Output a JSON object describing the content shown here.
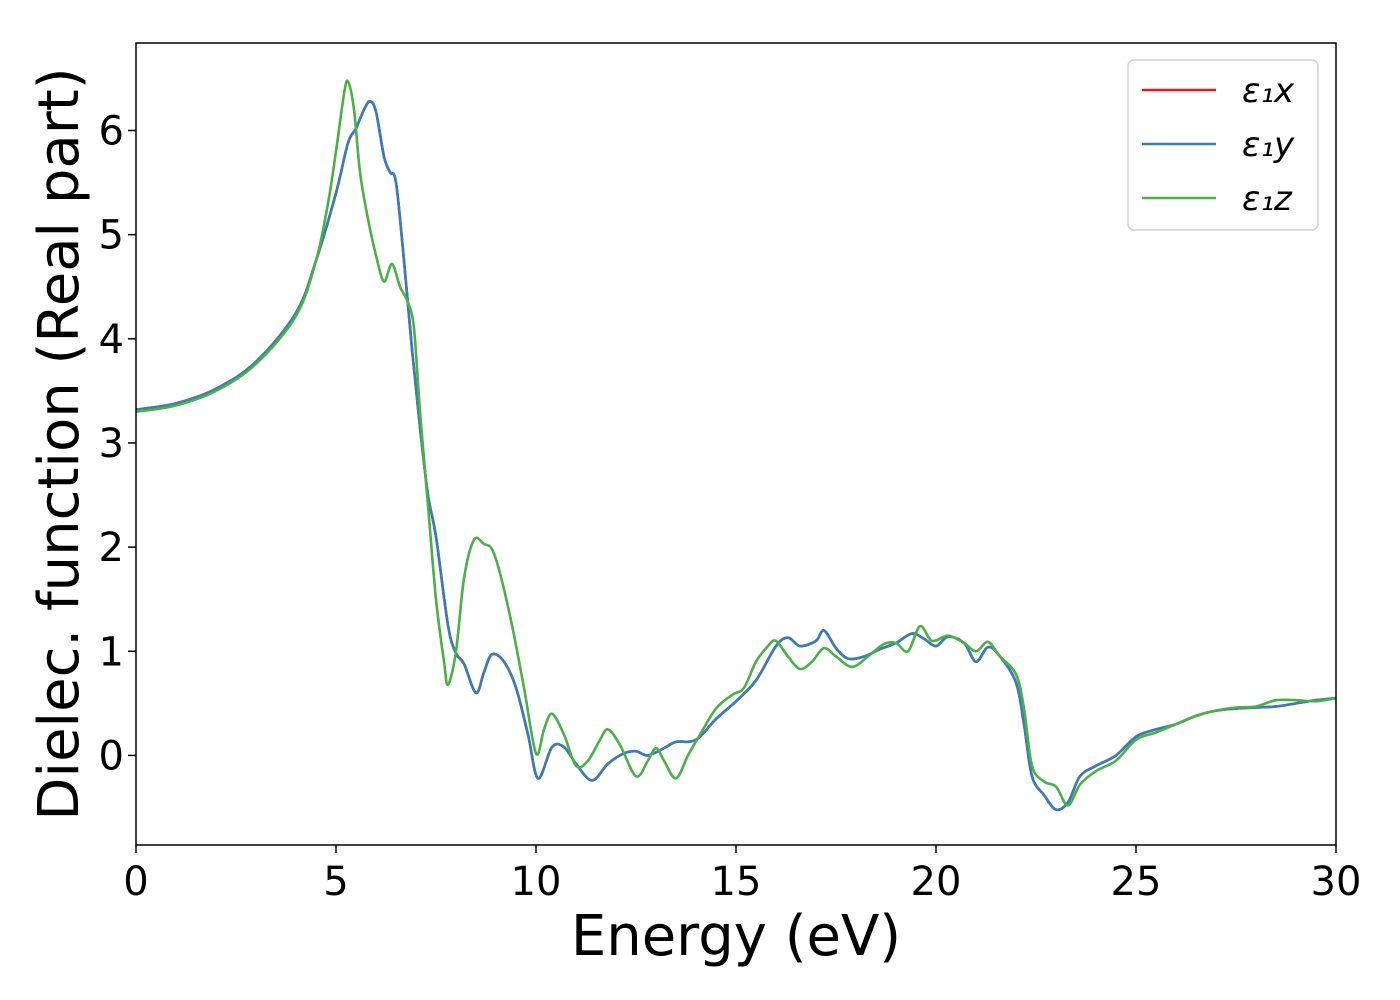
{
  "chart_data": {
    "type": "line",
    "xlabel": "Energy (eV)",
    "ylabel": "Dielec. function (Real part)",
    "xlim": [
      0,
      30
    ],
    "ylim": [
      -0.86,
      6.84
    ],
    "xticks": [
      0,
      5,
      10,
      15,
      20,
      25,
      30
    ],
    "yticks": [
      0,
      1,
      2,
      3,
      4,
      5,
      6
    ],
    "grid": false,
    "legend_position": "top-right",
    "series": [
      {
        "name": "ε₁x",
        "color": "#e41a1c",
        "points": [
          [
            0,
            3.32
          ],
          [
            1,
            3.38
          ],
          [
            2,
            3.52
          ],
          [
            3,
            3.78
          ],
          [
            4,
            4.25
          ],
          [
            4.5,
            4.75
          ],
          [
            5,
            5.4
          ],
          [
            5.3,
            5.88
          ],
          [
            5.5,
            6.02
          ],
          [
            5.7,
            6.2
          ],
          [
            5.85,
            6.28
          ],
          [
            6.0,
            6.18
          ],
          [
            6.2,
            5.75
          ],
          [
            6.35,
            5.6
          ],
          [
            6.5,
            5.5
          ],
          [
            6.7,
            4.75
          ],
          [
            6.9,
            3.9
          ],
          [
            7.1,
            3.15
          ],
          [
            7.3,
            2.5
          ],
          [
            7.5,
            2.1
          ],
          [
            7.8,
            1.25
          ],
          [
            8.0,
            0.98
          ],
          [
            8.2,
            0.88
          ],
          [
            8.5,
            0.6
          ],
          [
            8.7,
            0.8
          ],
          [
            8.9,
            0.97
          ],
          [
            9.2,
            0.9
          ],
          [
            9.5,
            0.65
          ],
          [
            9.8,
            0.2
          ],
          [
            10.05,
            -0.22
          ],
          [
            10.4,
            0.08
          ],
          [
            10.7,
            0.08
          ],
          [
            11.0,
            -0.08
          ],
          [
            11.4,
            -0.24
          ],
          [
            11.8,
            -0.08
          ],
          [
            12.2,
            0.02
          ],
          [
            12.5,
            0.04
          ],
          [
            12.8,
            0.0
          ],
          [
            13.2,
            0.07
          ],
          [
            13.5,
            0.13
          ],
          [
            14.0,
            0.15
          ],
          [
            14.5,
            0.35
          ],
          [
            15.0,
            0.52
          ],
          [
            15.5,
            0.72
          ],
          [
            16.0,
            1.05
          ],
          [
            16.3,
            1.13
          ],
          [
            16.6,
            1.05
          ],
          [
            17.0,
            1.1
          ],
          [
            17.2,
            1.2
          ],
          [
            17.5,
            1.03
          ],
          [
            17.8,
            0.93
          ],
          [
            18.2,
            0.95
          ],
          [
            18.6,
            1.02
          ],
          [
            19.0,
            1.08
          ],
          [
            19.4,
            1.17
          ],
          [
            19.7,
            1.12
          ],
          [
            20.0,
            1.05
          ],
          [
            20.3,
            1.14
          ],
          [
            20.7,
            1.08
          ],
          [
            21.0,
            0.9
          ],
          [
            21.3,
            1.04
          ],
          [
            21.6,
            0.95
          ],
          [
            22.0,
            0.7
          ],
          [
            22.2,
            0.3
          ],
          [
            22.4,
            -0.2
          ],
          [
            22.7,
            -0.38
          ],
          [
            23.0,
            -0.52
          ],
          [
            23.3,
            -0.45
          ],
          [
            23.6,
            -0.2
          ],
          [
            24.0,
            -0.1
          ],
          [
            24.5,
            0.0
          ],
          [
            25.0,
            0.18
          ],
          [
            25.5,
            0.25
          ],
          [
            26.0,
            0.3
          ],
          [
            26.5,
            0.38
          ],
          [
            27.0,
            0.43
          ],
          [
            27.5,
            0.45
          ],
          [
            28.0,
            0.46
          ],
          [
            28.5,
            0.47
          ],
          [
            29.0,
            0.5
          ],
          [
            29.5,
            0.53
          ],
          [
            30.0,
            0.55
          ]
        ]
      },
      {
        "name": "ε₁y",
        "color": "#377eb8",
        "points": [
          [
            0,
            3.32
          ],
          [
            1,
            3.38
          ],
          [
            2,
            3.52
          ],
          [
            3,
            3.78
          ],
          [
            4,
            4.25
          ],
          [
            4.5,
            4.75
          ],
          [
            5,
            5.4
          ],
          [
            5.3,
            5.88
          ],
          [
            5.5,
            6.02
          ],
          [
            5.7,
            6.2
          ],
          [
            5.85,
            6.28
          ],
          [
            6.0,
            6.18
          ],
          [
            6.2,
            5.75
          ],
          [
            6.35,
            5.6
          ],
          [
            6.5,
            5.5
          ],
          [
            6.7,
            4.75
          ],
          [
            6.9,
            3.9
          ],
          [
            7.1,
            3.15
          ],
          [
            7.3,
            2.5
          ],
          [
            7.5,
            2.1
          ],
          [
            7.8,
            1.25
          ],
          [
            8.0,
            0.98
          ],
          [
            8.2,
            0.88
          ],
          [
            8.5,
            0.6
          ],
          [
            8.7,
            0.8
          ],
          [
            8.9,
            0.97
          ],
          [
            9.2,
            0.9
          ],
          [
            9.5,
            0.65
          ],
          [
            9.8,
            0.2
          ],
          [
            10.05,
            -0.22
          ],
          [
            10.4,
            0.08
          ],
          [
            10.7,
            0.08
          ],
          [
            11.0,
            -0.08
          ],
          [
            11.4,
            -0.24
          ],
          [
            11.8,
            -0.08
          ],
          [
            12.2,
            0.02
          ],
          [
            12.5,
            0.04
          ],
          [
            12.8,
            0.0
          ],
          [
            13.2,
            0.07
          ],
          [
            13.5,
            0.13
          ],
          [
            14.0,
            0.15
          ],
          [
            14.5,
            0.35
          ],
          [
            15.0,
            0.52
          ],
          [
            15.5,
            0.72
          ],
          [
            16.0,
            1.05
          ],
          [
            16.3,
            1.13
          ],
          [
            16.6,
            1.05
          ],
          [
            17.0,
            1.1
          ],
          [
            17.2,
            1.2
          ],
          [
            17.5,
            1.03
          ],
          [
            17.8,
            0.93
          ],
          [
            18.2,
            0.95
          ],
          [
            18.6,
            1.02
          ],
          [
            19.0,
            1.08
          ],
          [
            19.4,
            1.17
          ],
          [
            19.7,
            1.12
          ],
          [
            20.0,
            1.05
          ],
          [
            20.3,
            1.14
          ],
          [
            20.7,
            1.08
          ],
          [
            21.0,
            0.9
          ],
          [
            21.3,
            1.04
          ],
          [
            21.6,
            0.95
          ],
          [
            22.0,
            0.7
          ],
          [
            22.2,
            0.3
          ],
          [
            22.4,
            -0.2
          ],
          [
            22.7,
            -0.38
          ],
          [
            23.0,
            -0.52
          ],
          [
            23.3,
            -0.45
          ],
          [
            23.6,
            -0.2
          ],
          [
            24.0,
            -0.1
          ],
          [
            24.5,
            0.0
          ],
          [
            25.0,
            0.18
          ],
          [
            25.5,
            0.25
          ],
          [
            26.0,
            0.3
          ],
          [
            26.5,
            0.38
          ],
          [
            27.0,
            0.43
          ],
          [
            27.5,
            0.45
          ],
          [
            28.0,
            0.46
          ],
          [
            28.5,
            0.47
          ],
          [
            29.0,
            0.5
          ],
          [
            29.5,
            0.53
          ],
          [
            30.0,
            0.55
          ]
        ]
      },
      {
        "name": "ε₁z",
        "color": "#4daf4a",
        "points": [
          [
            0,
            3.3
          ],
          [
            1,
            3.36
          ],
          [
            2,
            3.5
          ],
          [
            3,
            3.76
          ],
          [
            4,
            4.22
          ],
          [
            4.5,
            4.75
          ],
          [
            4.8,
            5.3
          ],
          [
            5.0,
            5.8
          ],
          [
            5.2,
            6.35
          ],
          [
            5.3,
            6.47
          ],
          [
            5.45,
            6.2
          ],
          [
            5.6,
            5.6
          ],
          [
            5.8,
            5.15
          ],
          [
            6.0,
            4.8
          ],
          [
            6.2,
            4.55
          ],
          [
            6.4,
            4.72
          ],
          [
            6.6,
            4.5
          ],
          [
            6.8,
            4.35
          ],
          [
            6.95,
            4.1
          ],
          [
            7.1,
            3.3
          ],
          [
            7.3,
            2.4
          ],
          [
            7.5,
            1.5
          ],
          [
            7.7,
            0.9
          ],
          [
            7.8,
            0.68
          ],
          [
            8.0,
            1.0
          ],
          [
            8.2,
            1.7
          ],
          [
            8.45,
            2.07
          ],
          [
            8.7,
            2.03
          ],
          [
            8.9,
            1.98
          ],
          [
            9.1,
            1.75
          ],
          [
            9.4,
            1.25
          ],
          [
            9.7,
            0.65
          ],
          [
            10.0,
            0.02
          ],
          [
            10.2,
            0.25
          ],
          [
            10.4,
            0.4
          ],
          [
            10.7,
            0.2
          ],
          [
            11.0,
            -0.1
          ],
          [
            11.3,
            -0.05
          ],
          [
            11.6,
            0.15
          ],
          [
            11.8,
            0.25
          ],
          [
            12.1,
            0.1
          ],
          [
            12.5,
            -0.2
          ],
          [
            12.8,
            -0.05
          ],
          [
            13.0,
            0.07
          ],
          [
            13.2,
            -0.05
          ],
          [
            13.5,
            -0.22
          ],
          [
            13.8,
            0.0
          ],
          [
            14.1,
            0.2
          ],
          [
            14.5,
            0.45
          ],
          [
            14.9,
            0.58
          ],
          [
            15.2,
            0.65
          ],
          [
            15.5,
            0.9
          ],
          [
            15.8,
            1.05
          ],
          [
            16.0,
            1.1
          ],
          [
            16.3,
            0.95
          ],
          [
            16.6,
            0.83
          ],
          [
            16.9,
            0.9
          ],
          [
            17.2,
            1.03
          ],
          [
            17.5,
            0.95
          ],
          [
            17.9,
            0.85
          ],
          [
            18.3,
            0.95
          ],
          [
            18.7,
            1.07
          ],
          [
            19.0,
            1.08
          ],
          [
            19.3,
            1.0
          ],
          [
            19.6,
            1.24
          ],
          [
            19.9,
            1.1
          ],
          [
            20.3,
            1.15
          ],
          [
            20.7,
            1.08
          ],
          [
            21.0,
            1.0
          ],
          [
            21.3,
            1.09
          ],
          [
            21.6,
            0.95
          ],
          [
            22.0,
            0.78
          ],
          [
            22.2,
            0.45
          ],
          [
            22.4,
            -0.1
          ],
          [
            22.7,
            -0.25
          ],
          [
            23.0,
            -0.3
          ],
          [
            23.3,
            -0.48
          ],
          [
            23.6,
            -0.28
          ],
          [
            24.0,
            -0.15
          ],
          [
            24.5,
            -0.05
          ],
          [
            25.0,
            0.15
          ],
          [
            25.5,
            0.22
          ],
          [
            26.0,
            0.3
          ],
          [
            26.5,
            0.38
          ],
          [
            27.0,
            0.43
          ],
          [
            27.5,
            0.46
          ],
          [
            28.0,
            0.47
          ],
          [
            28.5,
            0.53
          ],
          [
            29.0,
            0.53
          ],
          [
            29.5,
            0.52
          ],
          [
            30.0,
            0.55
          ]
        ]
      }
    ]
  }
}
